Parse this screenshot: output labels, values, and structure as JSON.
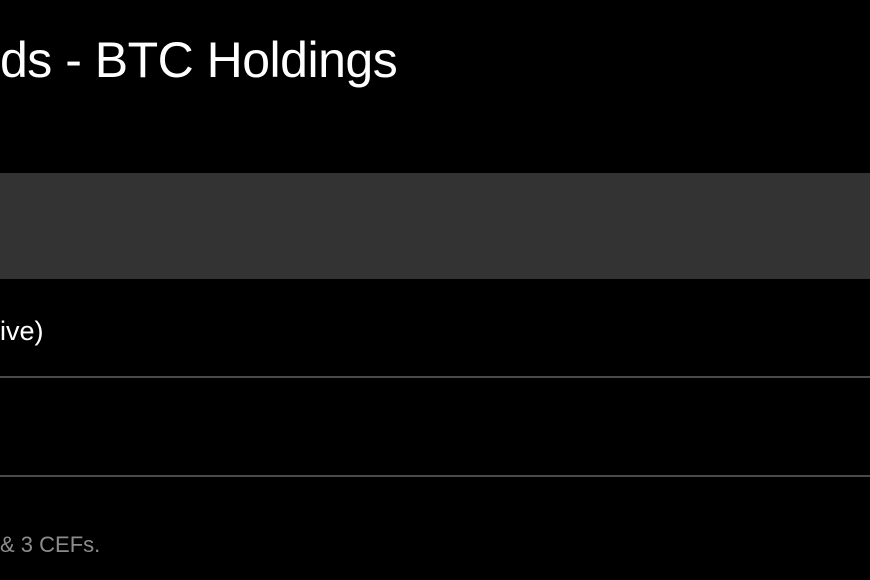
{
  "title": "ds - BTC Holdings",
  "table": {
    "rows": [
      {
        "label": "ive)"
      },
      {
        "label": ""
      }
    ]
  },
  "footnote": "& 3 CEFs."
}
